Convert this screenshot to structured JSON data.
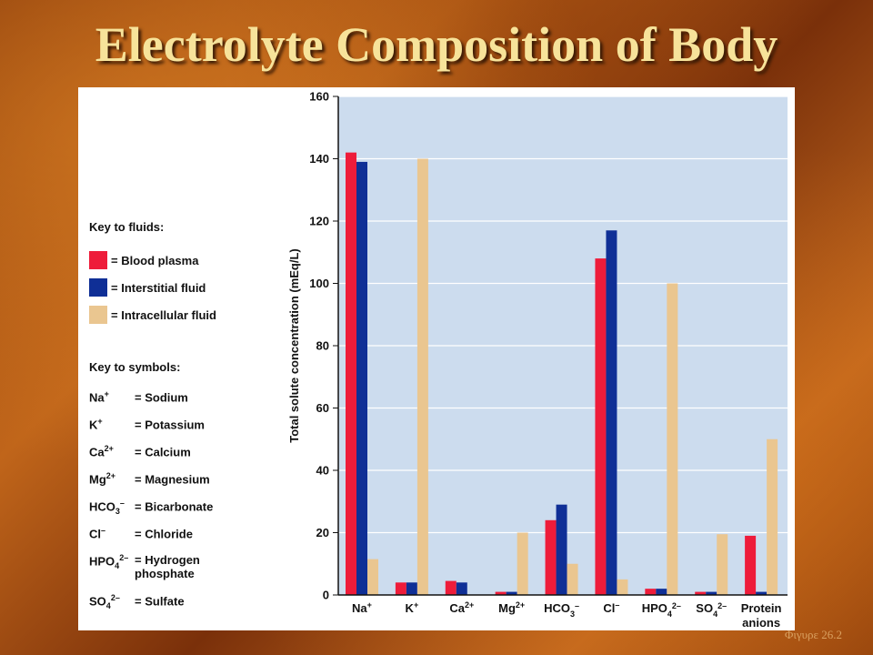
{
  "title": "Electrolyte Composition of Body",
  "caption": "Φιγυρε 26.2",
  "key_fluids": {
    "heading": "Key to fluids:",
    "items": [
      {
        "label": "= Blood plasma",
        "color": "#ee1c3a"
      },
      {
        "label": "= Interstitial fluid",
        "color": "#0f2f96"
      },
      {
        "label": "= Intracellular fluid",
        "color": "#eac690"
      }
    ]
  },
  "key_symbols": {
    "heading": "Key to symbols:",
    "items": [
      {
        "symbol": "Na",
        "sup": "+",
        "sub": "",
        "sup2": "",
        "meaning": "= Sodium"
      },
      {
        "symbol": "K",
        "sup": "+",
        "sub": "",
        "sup2": "",
        "meaning": "= Potassium"
      },
      {
        "symbol": "Ca",
        "sup": "2+",
        "sub": "",
        "sup2": "",
        "meaning": "= Calcium"
      },
      {
        "symbol": "Mg",
        "sup": "2+",
        "sub": "",
        "sup2": "",
        "meaning": "= Magnesium"
      },
      {
        "symbol": "HCO",
        "sup": "",
        "sub": "3",
        "sup2": "–",
        "meaning": "= Bicarbonate"
      },
      {
        "symbol": "Cl",
        "sup": "–",
        "sub": "",
        "sup2": "",
        "meaning": "= Chloride"
      },
      {
        "symbol": "HPO",
        "sup": "",
        "sub": "4",
        "sup2": "2–",
        "meaning": "= Hydrogen phosphate"
      },
      {
        "symbol": "SO",
        "sup": "",
        "sub": "4",
        "sup2": "2–",
        "meaning": "= Sulfate"
      }
    ]
  },
  "chart_data": {
    "type": "bar",
    "ylabel": "Total solute concentration (mEq/L)",
    "xlabel": "",
    "ylim": [
      0,
      160
    ],
    "yticks": [
      0,
      20,
      40,
      60,
      80,
      100,
      120,
      140,
      160
    ],
    "grid": true,
    "categories": [
      "Na+",
      "K+",
      "Ca2+",
      "Mg2+",
      "HCO3–",
      "Cl–",
      "HPO42–",
      "SO42–",
      "Protein anions"
    ],
    "category_labels": [
      {
        "base": "Na",
        "sup": "+",
        "sub": "",
        "sup2": ""
      },
      {
        "base": "K",
        "sup": "+",
        "sub": "",
        "sup2": ""
      },
      {
        "base": "Ca",
        "sup": "2+",
        "sub": "",
        "sup2": ""
      },
      {
        "base": "Mg",
        "sup": "2+",
        "sub": "",
        "sup2": ""
      },
      {
        "base": "HCO",
        "sup": "",
        "sub": "3",
        "sup2": "–"
      },
      {
        "base": "Cl",
        "sup": "–",
        "sub": "",
        "sup2": ""
      },
      {
        "base": "HPO",
        "sup": "",
        "sub": "4",
        "sup2": "2–"
      },
      {
        "base": "SO",
        "sup": "",
        "sub": "4",
        "sup2": "2–"
      },
      {
        "base": "Protein",
        "line2": "anions",
        "sup": "",
        "sub": "",
        "sup2": ""
      }
    ],
    "series": [
      {
        "name": "Blood plasma",
        "color": "#ee1c3a",
        "values": [
          142,
          4,
          4.5,
          1,
          24,
          108,
          2,
          1,
          19
        ]
      },
      {
        "name": "Interstitial fluid",
        "color": "#0f2f96",
        "values": [
          139,
          4,
          4,
          1,
          29,
          117,
          2,
          1,
          1
        ]
      },
      {
        "name": "Intracellular fluid",
        "color": "#eac690",
        "values": [
          11.5,
          140,
          0,
          20,
          10,
          5,
          100,
          19.5,
          50
        ]
      }
    ],
    "plot_background": "#ccdcee"
  }
}
